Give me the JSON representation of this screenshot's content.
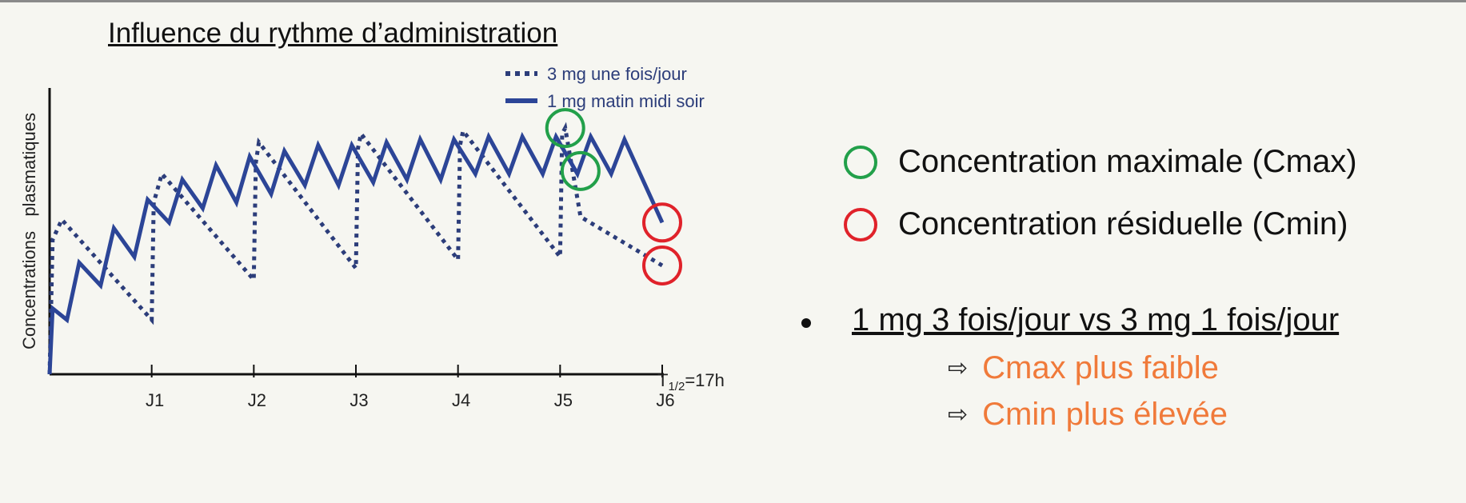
{
  "title": "Influence du rythme  d’administration",
  "legend": [
    {
      "label": "Concentration maximale (Cmax)",
      "color": "#22a04a",
      "icon": "green-circle-icon"
    },
    {
      "label": "Concentration résiduelle (Cmin)",
      "color": "#e0222a",
      "icon": "red-circle-icon"
    }
  ],
  "comparison": "1 mg 3 fois/jour vs 3 mg 1 fois/jour",
  "conclusions": [
    {
      "arrow": "⇨",
      "text": "Cmax plus faible",
      "color": "#f07a3a"
    },
    {
      "arrow": "⇨",
      "text": "Cmin plus élevée",
      "color": "#f07a3a"
    }
  ],
  "chart_data": {
    "type": "line",
    "title": "",
    "xlabel": "",
    "ylabel": "Concentrations   plasmatiques",
    "x_tick_labels": [
      "J1",
      "J2",
      "J3",
      "J4",
      "J5",
      "J6"
    ],
    "xlim": [
      0,
      6
    ],
    "ylim": [
      0,
      10
    ],
    "annotation": {
      "main": "T",
      "sub": "1/2",
      "rest": "=17h"
    },
    "series": [
      {
        "name": "3 mg une fois/jour",
        "style": "dotted",
        "color": "#2c3d7a",
        "x": [
          0,
          0.03,
          0.12,
          1,
          1.02,
          1.1,
          2,
          2.02,
          2.05,
          3,
          3.02,
          3.05,
          4,
          4.02,
          4.05,
          5,
          5.02,
          5.05,
          5.2,
          6
        ],
        "y": [
          0,
          4.7,
          5.4,
          1.9,
          6.0,
          7.0,
          3.3,
          7.4,
          8.1,
          3.7,
          7.9,
          8.4,
          4.0,
          8.0,
          8.5,
          4.1,
          8.4,
          8.6,
          5.5,
          3.8
        ]
      },
      {
        "name": "1 mg matin midi soir",
        "style": "solid",
        "color": "#2c4597",
        "x": [
          0,
          0.03,
          0.17,
          0.29,
          0.5,
          0.63,
          0.83,
          0.96,
          1.17,
          1.3,
          1.5,
          1.63,
          1.83,
          1.96,
          2.17,
          2.3,
          2.5,
          2.63,
          2.83,
          2.96,
          3.17,
          3.3,
          3.5,
          3.63,
          3.83,
          3.96,
          4.17,
          4.3,
          4.5,
          4.63,
          4.83,
          4.96,
          5.17,
          5.3,
          5.5,
          5.63,
          6
        ],
        "y": [
          0,
          2.3,
          1.9,
          3.9,
          3.1,
          5.1,
          4.1,
          6.1,
          5.3,
          6.8,
          5.8,
          7.3,
          6.0,
          7.6,
          6.3,
          7.8,
          6.6,
          8.0,
          6.6,
          8.0,
          6.7,
          8.1,
          6.8,
          8.2,
          6.8,
          8.2,
          7.0,
          8.3,
          7.0,
          8.3,
          7.0,
          8.3,
          7.0,
          8.3,
          7.0,
          8.2,
          5.3
        ]
      }
    ],
    "highlights": [
      {
        "label": "Cmax",
        "color": "#22a04a",
        "x": 5.05,
        "y": 8.6
      },
      {
        "label": "Cmax",
        "color": "#22a04a",
        "x": 5.2,
        "y": 7.1
      },
      {
        "label": "Cmin",
        "color": "#e0222a",
        "x": 6.0,
        "y": 5.3
      },
      {
        "label": "Cmin",
        "color": "#e0222a",
        "x": 6.0,
        "y": 3.8
      }
    ]
  }
}
